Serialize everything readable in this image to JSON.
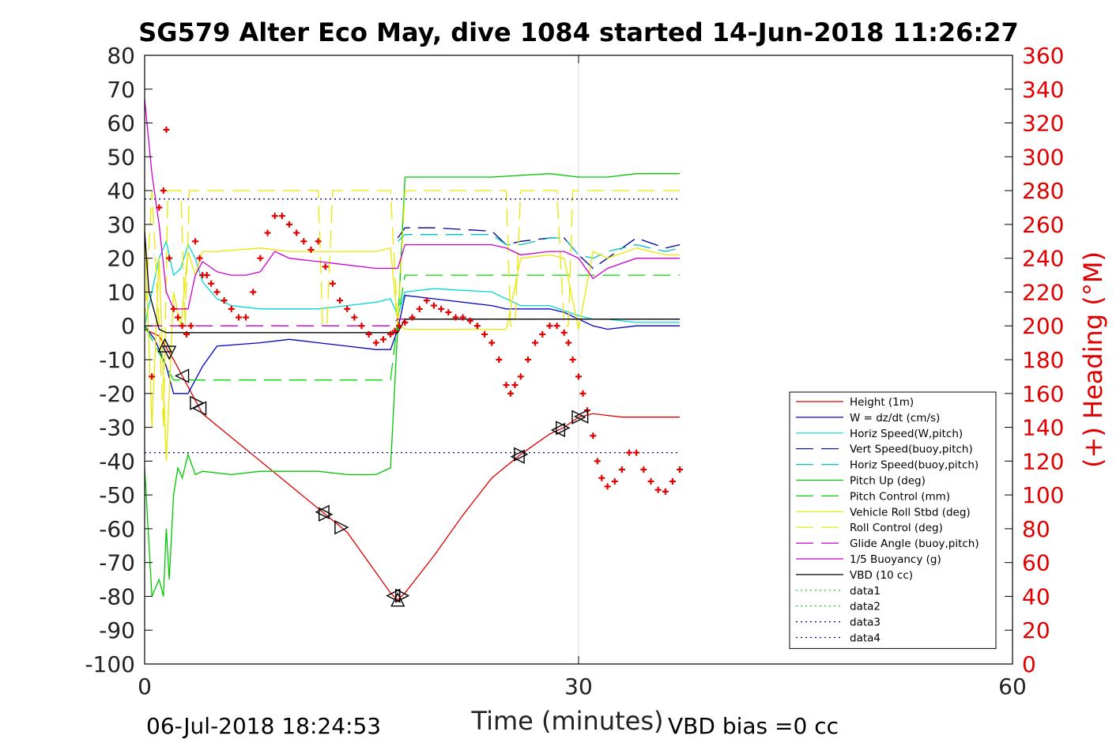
{
  "chart_data": {
    "type": "line",
    "title": "SG579 Alter Eco May, dive 1084 started 14-Jun-2018 11:26:27",
    "xlabel": "Time (minutes)",
    "ylabel_right": "(+) Heading (°M)",
    "xlim": [
      0,
      60
    ],
    "ylim_left": [
      -100,
      80
    ],
    "ylim_right": [
      0,
      360
    ],
    "x_ticks": [
      "0",
      "30",
      "60"
    ],
    "y_ticks_left": [
      "80",
      "70",
      "60",
      "50",
      "40",
      "30",
      "20",
      "10",
      "0",
      "-10",
      "-20",
      "-30",
      "-40",
      "-50",
      "-60",
      "-70",
      "-80",
      "-90",
      "-100"
    ],
    "y_ticks_right": [
      "360",
      "340",
      "320",
      "300",
      "280",
      "260",
      "240",
      "220",
      "200",
      "180",
      "160",
      "140",
      "120",
      "100",
      "80",
      "60",
      "40",
      "20",
      "0"
    ],
    "grid": "x-only at 30",
    "legend_position": "bottom-right",
    "footer_left": "06-Jul-2018 18:24:53",
    "footer_right": "VBD bias =0 cc",
    "series": [
      {
        "name": "Height (1m)",
        "color": "#e00000",
        "style": "solid",
        "x": [
          0,
          1,
          2,
          3,
          4,
          6,
          8,
          10,
          12,
          14,
          16,
          17,
          17.5,
          18,
          20,
          22,
          24,
          26,
          28,
          29,
          30,
          31,
          33,
          35,
          37
        ],
        "y": [
          -1,
          -3,
          -10,
          -18,
          -26,
          -33,
          -40,
          -47,
          -54,
          -61,
          -73,
          -79,
          -81,
          -79,
          -68,
          -56,
          -45,
          -38,
          -32,
          -30,
          -27,
          -26,
          -27,
          -27,
          -27
        ]
      },
      {
        "name": "W = dz/dt (cm/s)",
        "color": "#0000c8",
        "style": "solid",
        "x": [
          0,
          0.7,
          1.5,
          2,
          3,
          4,
          5,
          8,
          10,
          12,
          14,
          16,
          17,
          17.5,
          18,
          20,
          24,
          25,
          26,
          28,
          29,
          30,
          31,
          32,
          34,
          36,
          37
        ],
        "y": [
          0,
          -4,
          -12,
          -20,
          -20,
          -12,
          -6,
          -5,
          -4,
          -5,
          -6,
          -7,
          -7,
          -1,
          9,
          8,
          6,
          5,
          5,
          5,
          4,
          2,
          0,
          -1,
          0,
          0,
          0
        ]
      },
      {
        "name": "Horiz Speed(W,pitch)",
        "color": "#00d8d8",
        "style": "solid",
        "x": [
          0,
          1,
          1.5,
          2,
          2.5,
          3,
          3.5,
          4,
          5,
          6,
          8,
          10,
          12,
          14,
          16,
          17,
          17.5,
          18,
          20,
          24,
          26,
          28,
          30,
          31,
          32,
          34,
          36,
          37
        ],
        "y": [
          0,
          20,
          25,
          15,
          17,
          24,
          20,
          13,
          8,
          6,
          5,
          5,
          5,
          6,
          7,
          8,
          3,
          10,
          11,
          10,
          6,
          6,
          3,
          2,
          2,
          1,
          1,
          1
        ]
      },
      {
        "name": "Vert Speed(buoy,pitch)",
        "color": "#000090",
        "style": "dashed",
        "x": [
          17.5,
          18,
          20,
          24,
          25,
          26,
          28,
          29,
          30,
          31,
          32,
          34,
          36,
          37
        ],
        "y": [
          26,
          29,
          29,
          28,
          24,
          25,
          26,
          26,
          21,
          17,
          20,
          26,
          23,
          24
        ]
      },
      {
        "name": "Horiz Speed(buoy,pitch)",
        "color": "#00c0c0",
        "style": "dashed",
        "x": [
          17.5,
          18,
          20,
          24,
          25,
          26,
          28,
          29,
          30,
          31,
          32,
          34,
          36,
          37
        ],
        "y": [
          25,
          27,
          27,
          27,
          24,
          24,
          26,
          26,
          21,
          20,
          22,
          24,
          22,
          23
        ]
      },
      {
        "name": "Pitch Up (deg)",
        "color": "#00c800",
        "style": "solid",
        "x": [
          0,
          0.5,
          1,
          1.3,
          1.5,
          1.7,
          2,
          2.3,
          2.6,
          3,
          3.5,
          4,
          6,
          8,
          10,
          12,
          14,
          16,
          17,
          17.5,
          18,
          20,
          24,
          28,
          30,
          32,
          34,
          36,
          37
        ],
        "y": [
          -42,
          -80,
          -75,
          -80,
          -60,
          -75,
          -50,
          -42,
          -45,
          -38,
          -44,
          -43,
          -44,
          -43,
          -43,
          -43,
          -44,
          -44,
          -42,
          0,
          44,
          44,
          44,
          45,
          44,
          44,
          45,
          45,
          45
        ]
      },
      {
        "name": "Pitch Control (mm)",
        "color": "#00d800",
        "style": "dashed",
        "x": [
          0,
          1,
          2,
          3,
          4,
          10,
          17,
          17.5,
          18,
          30,
          37
        ],
        "y": [
          0,
          -8,
          -16,
          -16,
          -16,
          -16,
          -16,
          2,
          15,
          15,
          15
        ]
      },
      {
        "name": "Vehicle Roll Stbd (deg)",
        "color": "#e8e800",
        "style": "solid",
        "x": [
          0,
          0.5,
          1,
          1.5,
          2,
          2.5,
          3,
          3.5,
          4,
          5,
          8,
          10,
          12,
          14,
          16,
          17,
          17.5,
          18,
          20,
          24,
          25,
          26,
          28,
          29,
          30,
          31,
          32,
          34,
          36,
          37
        ],
        "y": [
          30,
          -30,
          20,
          -40,
          10,
          0,
          22,
          15,
          22,
          22,
          23,
          22,
          22,
          22,
          22,
          23,
          0,
          -1,
          -1,
          -1,
          -1,
          20,
          21,
          20,
          -1,
          22,
          20,
          23,
          21,
          21
        ]
      },
      {
        "name": "Roll Control (deg)",
        "color": "#e8e800",
        "style": "dashed",
        "x": [
          0,
          0.5,
          1,
          1.3,
          1.6,
          2,
          2.5,
          2.8,
          3.1,
          3.5,
          10,
          12,
          12.3,
          12.6,
          13,
          17,
          17.5,
          18,
          25,
          25.3,
          25.6,
          26,
          28.5,
          29,
          29.3,
          29.6,
          30,
          31,
          37
        ],
        "y": [
          0,
          40,
          0,
          -30,
          40,
          40,
          40,
          0,
          40,
          40,
          40,
          40,
          0,
          0,
          40,
          40,
          0,
          40,
          40,
          0,
          0,
          40,
          40,
          0,
          0,
          40,
          40,
          40,
          40
        ]
      },
      {
        "name": "Glide Angle (buoy,pitch)",
        "color": "#c800c8",
        "style": "dashed",
        "x": [
          0,
          17,
          17.5,
          37
        ],
        "y": [
          0,
          0,
          2,
          2
        ]
      },
      {
        "name": "1/5 Buoyancy (g)",
        "color": "#d000d0",
        "style": "solid",
        "x": [
          0,
          0.5,
          1,
          1.5,
          2,
          2.5,
          3,
          3.5,
          4,
          5,
          6,
          7,
          8,
          9,
          10,
          12,
          14,
          16,
          17,
          17.5,
          18,
          20,
          24,
          25,
          26,
          28,
          29,
          30,
          31,
          32,
          34,
          36,
          37
        ],
        "y": [
          67,
          45,
          30,
          10,
          5,
          5,
          5,
          15,
          19,
          16,
          15,
          15,
          16,
          22,
          20,
          19,
          18,
          17,
          17,
          17,
          24,
          24,
          24,
          23,
          21,
          22,
          22,
          20,
          14,
          17,
          20,
          20,
          20
        ]
      },
      {
        "name": "VBD (10 cc)",
        "color": "#000000",
        "style": "solid",
        "x": [
          0,
          0.3,
          1,
          1.5,
          2,
          17,
          17.5,
          18,
          37
        ],
        "y": [
          28,
          10,
          -1,
          -2,
          -2,
          -2,
          -2,
          2,
          2
        ]
      },
      {
        "name": "data1",
        "color": "#00c800",
        "style": "dotted",
        "x": [],
        "y": []
      },
      {
        "name": "data2",
        "color": "#00c800",
        "style": "dotted",
        "x": [],
        "y": []
      },
      {
        "name": "data3",
        "color": "#000090",
        "style": "dotted",
        "x": [
          0,
          37
        ],
        "y": [
          37.5,
          37.5
        ]
      },
      {
        "name": "data4",
        "color": "#000090",
        "style": "dotted",
        "x": [
          0,
          37
        ],
        "y": [
          -37.5,
          -37.5
        ]
      }
    ],
    "heading_points": {
      "color": "#e00000",
      "axis": "right",
      "x": [
        0.5,
        1,
        1.3,
        1.5,
        1.7,
        2,
        2.3,
        2.6,
        2.9,
        3.2,
        3.5,
        3.8,
        4,
        4.3,
        4.6,
        5,
        5.5,
        6,
        6.5,
        7,
        7.5,
        8,
        8.5,
        9,
        9.5,
        10,
        10.5,
        11,
        11.5,
        12,
        12.5,
        13,
        13.5,
        14,
        14.5,
        15,
        15.5,
        16,
        16.5,
        17,
        17.3,
        17.6,
        18,
        18.5,
        19,
        19.5,
        20,
        20.5,
        21,
        21.5,
        22,
        22.5,
        23,
        23.5,
        24,
        24.5,
        25,
        25.3,
        25.6,
        26,
        26.5,
        27,
        27.5,
        28,
        28.5,
        29,
        29.3,
        29.6,
        30,
        30.3,
        30.6,
        31,
        31.3,
        31.6,
        32,
        32.5,
        33,
        33.5,
        34,
        34.5,
        35,
        35.5,
        36,
        36.5,
        37
      ],
      "y": [
        170,
        270,
        280,
        316,
        240,
        210,
        205,
        200,
        195,
        200,
        250,
        240,
        230,
        230,
        225,
        220,
        215,
        210,
        205,
        205,
        220,
        240,
        255,
        265,
        265,
        260,
        255,
        250,
        245,
        250,
        235,
        225,
        215,
        210,
        205,
        200,
        195,
        190,
        192,
        195,
        197,
        200,
        202,
        205,
        210,
        215,
        212,
        210,
        208,
        205,
        205,
        203,
        200,
        195,
        190,
        180,
        165,
        160,
        165,
        170,
        180,
        190,
        195,
        200,
        200,
        196,
        190,
        180,
        170,
        160,
        150,
        135,
        120,
        110,
        105,
        108,
        115,
        125,
        125,
        115,
        108,
        103,
        102,
        108,
        115
      ]
    }
  }
}
